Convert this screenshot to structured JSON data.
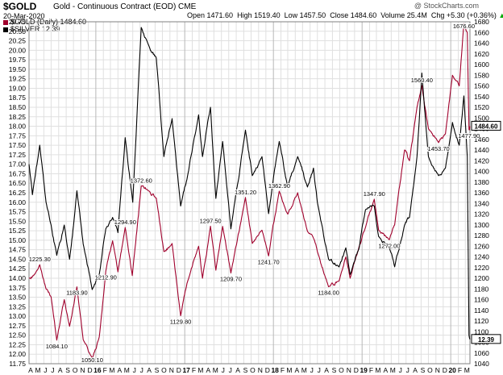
{
  "header": {
    "symbol": "$GOLD",
    "subtitle": "Gold - Continuous Contract (EOD)  CME",
    "date": "20-Mar-2020",
    "credit": "@ StockCharts.com",
    "ohlc": [
      {
        "label": "Open",
        "value": "1471.60"
      },
      {
        "label": "High",
        "value": "1519.40"
      },
      {
        "label": "Low",
        "value": "1457.50"
      },
      {
        "label": "Close",
        "value": "1484.60"
      },
      {
        "label": "Volume",
        "value": "25.4M"
      },
      {
        "label": "Chg",
        "value": "+5.30 (+0.36%)"
      }
    ]
  },
  "colors": {
    "gold": "#a0002c",
    "silver": "#000000",
    "grid": "#e0e0e0",
    "frame": "#808080",
    "upArrow": "#00aa00"
  },
  "chart_data": {
    "type": "line",
    "x_start": "2015-04-01",
    "x_end": "2020-03-20",
    "grid": true,
    "legend": "top-left",
    "legend_entries": [
      "$GOLD (Daily) 1484.60",
      "$SILVER 12.39"
    ],
    "month_labels": [
      "A",
      "M",
      "J",
      "J",
      "A",
      "S",
      "O",
      "N",
      "D",
      "16",
      "F",
      "M",
      "A",
      "M",
      "J",
      "J",
      "A",
      "S",
      "O",
      "N",
      "D",
      "17",
      "F",
      "M",
      "A",
      "M",
      "J",
      "J",
      "A",
      "S",
      "O",
      "N",
      "D",
      "18",
      "F",
      "M",
      "A",
      "M",
      "J",
      "J",
      "A",
      "S",
      "O",
      "N",
      "D",
      "19",
      "F",
      "M",
      "A",
      "M",
      "J",
      "J",
      "A",
      "S",
      "O",
      "N",
      "D",
      "20",
      "F",
      "M"
    ],
    "year_labels": [
      "16",
      "17",
      "18",
      "19",
      "20"
    ],
    "left_axis": {
      "series": "SILVER",
      "min": 11.75,
      "max": 20.75,
      "ticks": [
        11.75,
        12.0,
        12.25,
        12.5,
        12.75,
        13.0,
        13.25,
        13.5,
        13.75,
        14.0,
        14.25,
        14.5,
        14.75,
        15.0,
        15.25,
        15.5,
        15.75,
        16.0,
        16.25,
        16.5,
        16.75,
        17.0,
        17.25,
        17.5,
        17.75,
        18.0,
        18.25,
        18.5,
        18.75,
        19.0,
        19.25,
        19.5,
        19.75,
        20.0,
        20.25,
        20.5,
        20.75
      ],
      "tick_labels": [
        "11.75",
        "12.00",
        "12.25",
        "12.50",
        "12.75",
        "13.00",
        "13.25",
        "13.50",
        "13.75",
        "14.00",
        "14.25",
        "14.50",
        "14.75",
        "15.00",
        "15.25",
        "15.50",
        "15.75",
        "16.00",
        "16.25",
        "16.50",
        "16.75",
        "17.00",
        "17.25",
        "17.50",
        "17.75",
        "18.00",
        "18.25",
        "18.50",
        "18.75",
        "19.00",
        "19.25",
        "19.50",
        "19.75",
        "20.00",
        "20.25",
        "20.50",
        "20.75"
      ]
    },
    "right_axis": {
      "series": "GOLD",
      "min": 1040,
      "max": 1680,
      "ticks": [
        1040,
        1060,
        1080,
        1100,
        1120,
        1140,
        1160,
        1180,
        1200,
        1220,
        1240,
        1260,
        1280,
        1300,
        1320,
        1340,
        1360,
        1380,
        1400,
        1420,
        1440,
        1460,
        1480,
        1500,
        1520,
        1540,
        1560,
        1580,
        1600,
        1620,
        1640,
        1660,
        1680
      ],
      "tick_labels": [
        "1040",
        "1060",
        "1080",
        "1100",
        "1120",
        "1140",
        "1160",
        "1180",
        "1200",
        "1220",
        "1240",
        "1260",
        "1280",
        "1300",
        "1320",
        "1340",
        "1360",
        "1380",
        "1400",
        "1420",
        "1440",
        "1460",
        "1480",
        "1500",
        "1520",
        "1540",
        "1560",
        "1580",
        "1600",
        "1620",
        "1640",
        "1660",
        "1680"
      ]
    },
    "series": [
      {
        "name": "$GOLD (Daily) 1484.60",
        "axis": "right",
        "color": "#a0002c",
        "points": [
          [
            "2015-04-01",
            1200
          ],
          [
            "2015-04-20",
            1205
          ],
          [
            "2015-05-15",
            1225.3
          ],
          [
            "2015-06-10",
            1180
          ],
          [
            "2015-07-01",
            1165
          ],
          [
            "2015-07-24",
            1084.1
          ],
          [
            "2015-08-24",
            1160
          ],
          [
            "2015-09-15",
            1110
          ],
          [
            "2015-10-15",
            1183.9
          ],
          [
            "2015-11-10",
            1085
          ],
          [
            "2015-12-17",
            1050.1
          ],
          [
            "2016-01-15",
            1090
          ],
          [
            "2016-02-11",
            1212.9
          ],
          [
            "2016-03-10",
            1270
          ],
          [
            "2016-04-01",
            1212
          ],
          [
            "2016-05-01",
            1294.9
          ],
          [
            "2016-05-30",
            1205
          ],
          [
            "2016-07-06",
            1372.6
          ],
          [
            "2016-08-01",
            1365
          ],
          [
            "2016-09-06",
            1350
          ],
          [
            "2016-10-07",
            1250
          ],
          [
            "2016-11-10",
            1265
          ],
          [
            "2016-12-15",
            1129.8
          ],
          [
            "2017-01-10",
            1190
          ],
          [
            "2017-02-27",
            1260
          ],
          [
            "2017-03-15",
            1200
          ],
          [
            "2017-04-17",
            1297.5
          ],
          [
            "2017-05-09",
            1215
          ],
          [
            "2017-06-06",
            1297
          ],
          [
            "2017-07-10",
            1209.7
          ],
          [
            "2017-09-08",
            1351.2
          ],
          [
            "2017-10-06",
            1265
          ],
          [
            "2017-11-15",
            1290
          ],
          [
            "2017-12-12",
            1241.7
          ],
          [
            "2018-01-25",
            1362.9
          ],
          [
            "2018-03-01",
            1320
          ],
          [
            "2018-04-11",
            1360
          ],
          [
            "2018-05-21",
            1288
          ],
          [
            "2018-06-15",
            1275
          ],
          [
            "2018-07-01",
            1250
          ],
          [
            "2018-08-16",
            1184
          ],
          [
            "2018-09-28",
            1195
          ],
          [
            "2018-10-26",
            1240
          ],
          [
            "2018-11-13",
            1200
          ],
          [
            "2018-12-20",
            1260
          ],
          [
            "2019-01-15",
            1295
          ],
          [
            "2019-02-20",
            1347.9
          ],
          [
            "2019-03-10",
            1290
          ],
          [
            "2019-04-23",
            1272
          ],
          [
            "2019-05-15",
            1300
          ],
          [
            "2019-06-25",
            1440
          ],
          [
            "2019-07-15",
            1420
          ],
          [
            "2019-08-15",
            1520
          ],
          [
            "2019-09-04",
            1560.4
          ],
          [
            "2019-10-01",
            1480
          ],
          [
            "2019-11-12",
            1453.7
          ],
          [
            "2019-12-10",
            1470
          ],
          [
            "2020-01-08",
            1580
          ],
          [
            "2020-02-05",
            1560
          ],
          [
            "2020-02-24",
            1676.6
          ],
          [
            "2020-03-09",
            1660
          ],
          [
            "2020-03-16",
            1477.9
          ],
          [
            "2020-03-20",
            1484.6
          ]
        ]
      },
      {
        "name": "$SILVER 12.39",
        "axis": "left",
        "color": "#000000",
        "points": [
          [
            "2015-04-01",
            17.0
          ],
          [
            "2015-04-15",
            16.2
          ],
          [
            "2015-05-15",
            17.5
          ],
          [
            "2015-06-10",
            16.0
          ],
          [
            "2015-07-01",
            15.4
          ],
          [
            "2015-07-24",
            14.6
          ],
          [
            "2015-08-24",
            15.4
          ],
          [
            "2015-09-15",
            14.5
          ],
          [
            "2015-10-15",
            16.3
          ],
          [
            "2015-11-10",
            14.9
          ],
          [
            "2015-12-17",
            13.7
          ],
          [
            "2016-01-15",
            14.1
          ],
          [
            "2016-02-11",
            15.3
          ],
          [
            "2016-03-10",
            15.6
          ],
          [
            "2016-04-01",
            15.2
          ],
          [
            "2016-05-01",
            17.7
          ],
          [
            "2016-06-01",
            16.0
          ],
          [
            "2016-07-06",
            20.6
          ],
          [
            "2016-08-01",
            20.2
          ],
          [
            "2016-09-06",
            19.8
          ],
          [
            "2016-10-07",
            17.2
          ],
          [
            "2016-11-10",
            18.2
          ],
          [
            "2016-12-15",
            15.9
          ],
          [
            "2017-01-10",
            16.6
          ],
          [
            "2017-02-27",
            18.3
          ],
          [
            "2017-03-15",
            17.2
          ],
          [
            "2017-04-17",
            18.5
          ],
          [
            "2017-05-09",
            16.1
          ],
          [
            "2017-06-06",
            17.6
          ],
          [
            "2017-07-10",
            15.3
          ],
          [
            "2017-09-08",
            17.9
          ],
          [
            "2017-10-06",
            16.7
          ],
          [
            "2017-11-15",
            17.2
          ],
          [
            "2017-12-12",
            15.7
          ],
          [
            "2018-01-25",
            17.6
          ],
          [
            "2018-03-01",
            16.4
          ],
          [
            "2018-04-11",
            17.2
          ],
          [
            "2018-05-21",
            16.4
          ],
          [
            "2018-06-15",
            16.9
          ],
          [
            "2018-07-01",
            16.0
          ],
          [
            "2018-08-16",
            14.5
          ],
          [
            "2018-09-28",
            14.3
          ],
          [
            "2018-10-26",
            14.8
          ],
          [
            "2018-11-13",
            14.1
          ],
          [
            "2018-12-20",
            14.8
          ],
          [
            "2019-01-15",
            15.8
          ],
          [
            "2019-02-20",
            15.9
          ],
          [
            "2019-03-10",
            15.1
          ],
          [
            "2019-04-23",
            14.8
          ],
          [
            "2019-05-15",
            14.3
          ],
          [
            "2019-06-25",
            15.4
          ],
          [
            "2019-07-15",
            15.6
          ],
          [
            "2019-08-15",
            17.2
          ],
          [
            "2019-09-04",
            19.4
          ],
          [
            "2019-10-01",
            17.2
          ],
          [
            "2019-11-12",
            16.7
          ],
          [
            "2019-12-10",
            16.9
          ],
          [
            "2020-01-08",
            18.1
          ],
          [
            "2020-02-05",
            17.5
          ],
          [
            "2020-02-24",
            18.8
          ],
          [
            "2020-03-09",
            17.2
          ],
          [
            "2020-03-16",
            12.5
          ],
          [
            "2020-03-20",
            12.39
          ]
        ]
      }
    ],
    "annotations": [
      {
        "text": "1225.30",
        "series": "gold",
        "x": "2015-05-15",
        "y": 1225.3
      },
      {
        "text": "1084.10",
        "series": "gold",
        "x": "2015-07-24",
        "y": 1084.1
      },
      {
        "text": "1183.90",
        "series": "gold",
        "x": "2015-10-15",
        "y": 1183.9
      },
      {
        "text": "1050.10",
        "series": "gold",
        "x": "2015-12-17",
        "y": 1050.1
      },
      {
        "text": "1212.90",
        "series": "gold",
        "x": "2016-02-11",
        "y": 1212.9
      },
      {
        "text": "1294.90",
        "series": "gold",
        "x": "2016-05-01",
        "y": 1294.9
      },
      {
        "text": "1372.60",
        "series": "gold",
        "x": "2016-07-06",
        "y": 1372.6
      },
      {
        "text": "1129.80",
        "series": "gold",
        "x": "2016-12-15",
        "y": 1129.8
      },
      {
        "text": "1297.50",
        "series": "gold",
        "x": "2017-04-17",
        "y": 1297.5
      },
      {
        "text": "1209.70",
        "series": "gold",
        "x": "2017-07-10",
        "y": 1209.7
      },
      {
        "text": "1351.20",
        "series": "gold",
        "x": "2017-09-08",
        "y": 1351.2
      },
      {
        "text": "1241.70",
        "series": "gold",
        "x": "2017-12-12",
        "y": 1241.7
      },
      {
        "text": "1362.90",
        "series": "gold",
        "x": "2018-01-25",
        "y": 1362.9
      },
      {
        "text": "1184.00",
        "series": "gold",
        "x": "2018-08-16",
        "y": 1184.0
      },
      {
        "text": "1347.90",
        "series": "gold",
        "x": "2019-02-20",
        "y": 1347.9
      },
      {
        "text": "1272.00",
        "series": "gold",
        "x": "2019-04-23",
        "y": 1272.0
      },
      {
        "text": "1560.40",
        "series": "gold",
        "x": "2019-09-04",
        "y": 1560.4
      },
      {
        "text": "1453.70",
        "series": "gold",
        "x": "2019-11-12",
        "y": 1453.7
      },
      {
        "text": "1676.60",
        "series": "gold",
        "x": "2020-02-24",
        "y": 1676.6
      },
      {
        "text": "1477.90",
        "series": "gold",
        "x": "2020-03-16",
        "y": 1477.9
      }
    ],
    "last_value_tags": [
      {
        "text": "1484.60",
        "series": "gold",
        "value": 1484.6,
        "axis": "right"
      },
      {
        "text": "12.39",
        "series": "silver",
        "value": 12.39,
        "axis": "right"
      }
    ]
  }
}
